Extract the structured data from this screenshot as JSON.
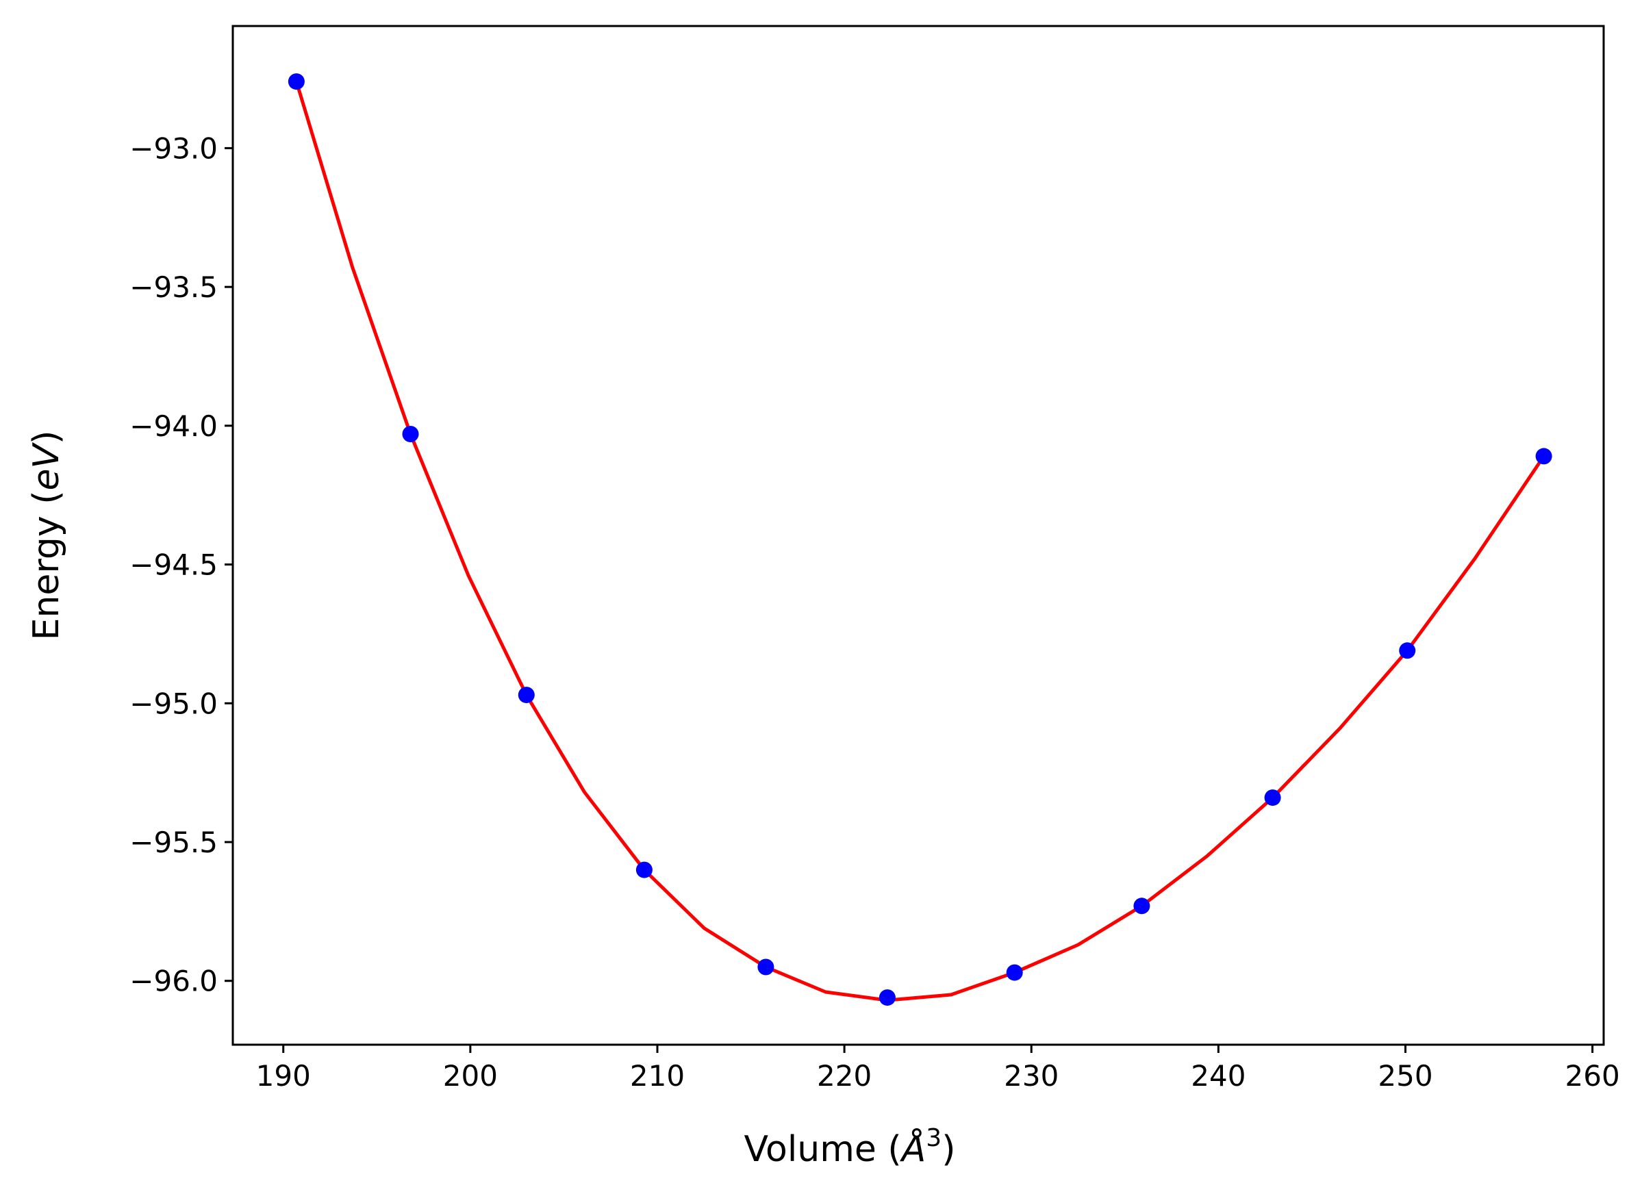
{
  "chart_data": {
    "type": "scatter",
    "title": "",
    "xlabel": "Volume (",
    "xlabel_symbol": "Å",
    "xlabel_exponent": "3",
    "xlabel_close": ")",
    "ylabel": "Energy (",
    "ylabel_unit": "eV",
    "ylabel_close": ")",
    "xlim": [
      187.3,
      260.6
    ],
    "ylim": [
      -96.23,
      -92.56
    ],
    "xticks": [
      190,
      200,
      210,
      220,
      230,
      240,
      250,
      260
    ],
    "yticks": [
      -93.0,
      -93.5,
      -94.0,
      -94.5,
      -95.0,
      -95.5,
      -96.0
    ],
    "xtick_labels": [
      "190",
      "200",
      "210",
      "220",
      "230",
      "240",
      "250",
      "260"
    ],
    "ytick_labels": [
      "−93.0",
      "−93.5",
      "−94.0",
      "−94.5",
      "−95.0",
      "−95.5",
      "−96.0"
    ],
    "grid": false,
    "series": [
      {
        "kind": "points",
        "color": "#0000ff",
        "x": [
          190.7,
          196.8,
          203.0,
          209.3,
          215.8,
          222.3,
          229.1,
          235.9,
          242.9,
          250.1,
          257.4
        ],
        "y": [
          -92.76,
          -94.03,
          -94.97,
          -95.6,
          -95.95,
          -96.06,
          -95.97,
          -95.73,
          -95.34,
          -94.81,
          -94.11
        ]
      },
      {
        "kind": "fit-curve",
        "color": "#ff0000",
        "x": [
          190.7,
          193.7,
          196.8,
          199.9,
          203.0,
          206.1,
          209.3,
          212.5,
          215.8,
          219.0,
          222.3,
          225.7,
          229.1,
          232.5,
          235.9,
          239.4,
          242.9,
          246.5,
          250.1,
          253.7,
          257.4
        ],
        "y": [
          -92.76,
          -93.43,
          -94.03,
          -94.54,
          -94.97,
          -95.32,
          -95.6,
          -95.81,
          -95.95,
          -96.04,
          -96.07,
          -96.05,
          -95.97,
          -95.87,
          -95.73,
          -95.55,
          -95.34,
          -95.09,
          -94.81,
          -94.48,
          -94.11
        ]
      }
    ]
  }
}
